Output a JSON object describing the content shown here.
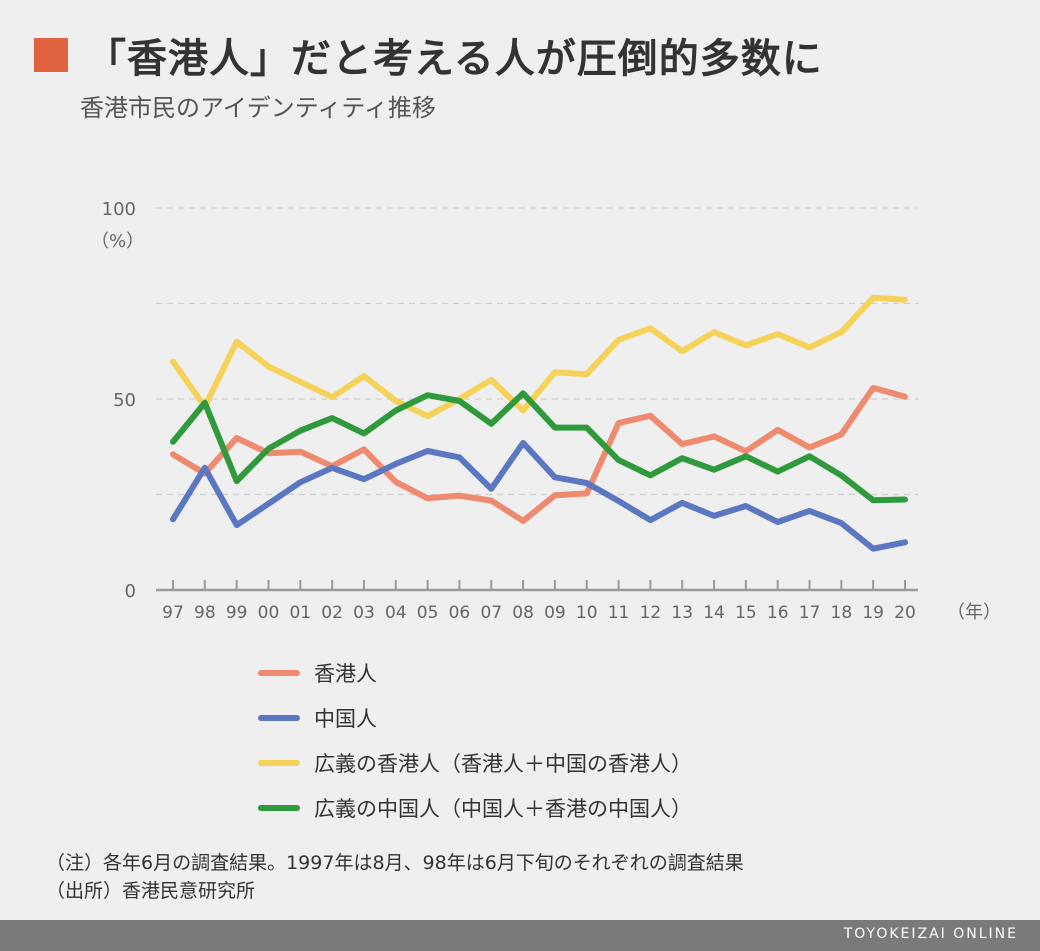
{
  "header": {
    "title": "「香港人」だと考える人が圧倒的多数に",
    "subtitle": "香港市民のアイデンティティ推移",
    "accent_color": "#e0623f"
  },
  "chart_data": {
    "type": "line",
    "title": "香港市民のアイデンティティ推移",
    "ylabel": "（%）",
    "xlabel": "（年）",
    "ylim": [
      0,
      100
    ],
    "yticks": [
      0,
      50,
      100
    ],
    "gridlines": [
      25,
      50,
      75,
      100
    ],
    "categories": [
      "97",
      "98",
      "99",
      "00",
      "01",
      "02",
      "03",
      "04",
      "05",
      "06",
      "07",
      "08",
      "09",
      "10",
      "11",
      "12",
      "13",
      "14",
      "15",
      "16",
      "17",
      "18",
      "19",
      "20"
    ],
    "series": [
      {
        "name": "香港人",
        "color": "#ee8a6f",
        "values": [
          35.5,
          30.5,
          39.8,
          35.8,
          36.2,
          32.4,
          36.8,
          28.3,
          24.0,
          24.7,
          23.4,
          18.1,
          24.8,
          25.3,
          43.7,
          45.6,
          38.2,
          40.2,
          36.3,
          41.9,
          37.3,
          40.7,
          52.9,
          50.6
        ]
      },
      {
        "name": "中国人",
        "color": "#5c77c2",
        "values": [
          18.5,
          32.0,
          17.0,
          22.6,
          28.2,
          32.0,
          29.0,
          33.0,
          36.4,
          34.7,
          26.5,
          38.5,
          29.5,
          28.0,
          23.3,
          18.3,
          22.8,
          19.4,
          22.0,
          17.8,
          20.7,
          17.5,
          10.8,
          12.5
        ]
      },
      {
        "name": "広義の香港人（香港人＋中国の香港人）",
        "color": "#f5d25a",
        "values": [
          59.8,
          48.0,
          65.0,
          58.5,
          54.5,
          50.5,
          56.0,
          49.5,
          45.5,
          50.0,
          55.0,
          47.0,
          57.0,
          56.5,
          65.5,
          68.5,
          62.5,
          67.5,
          64.0,
          67.0,
          63.5,
          67.5,
          76.5,
          76.0
        ]
      },
      {
        "name": "広義の中国人（中国人＋香港の中国人）",
        "color": "#2f9a3c",
        "values": [
          38.8,
          49.0,
          28.5,
          37.0,
          41.7,
          45.0,
          41.0,
          47.0,
          51.0,
          49.5,
          43.5,
          51.5,
          42.5,
          42.5,
          34.0,
          30.0,
          34.5,
          31.5,
          35.0,
          31.0,
          35.0,
          30.0,
          23.5,
          23.7
        ]
      }
    ]
  },
  "legend": [
    {
      "label": "香港人",
      "color": "#ee8a6f"
    },
    {
      "label": "中国人",
      "color": "#5c77c2"
    },
    {
      "label": "広義の香港人（香港人＋中国の香港人）",
      "color": "#f5d25a"
    },
    {
      "label": "広義の中国人（中国人＋香港の中国人）",
      "color": "#2f9a3c"
    }
  ],
  "notes": {
    "note": "（注）各年6月の調査結果。1997年は8月、98年は6月下旬のそれぞれの調査結果",
    "source": "（出所）香港民意研究所"
  },
  "footer": {
    "brand": "TOYOKEIZAI ONLINE"
  }
}
